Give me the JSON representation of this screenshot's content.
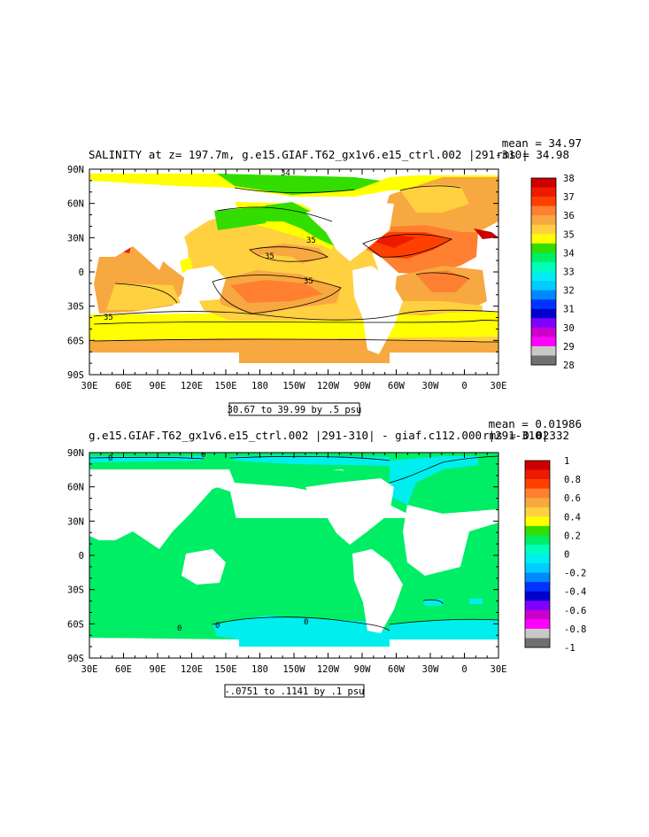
{
  "chart_data": [
    {
      "type": "heatmap",
      "title": "SALINITY at z= 197.7m, g.e15.GIAF.T62_gx1v6.e15_ctrl.002 |291-310|",
      "stats": {
        "mean": "mean = 34.97",
        "rms": "rms = 34.98"
      },
      "xticks": [
        "30E",
        "60E",
        "90E",
        "120E",
        "150E",
        "180",
        "150W",
        "120W",
        "90W",
        "60W",
        "30W",
        "0",
        "30E"
      ],
      "yticks": [
        "90N",
        "60N",
        "30N",
        "0",
        "30S",
        "60S",
        "90S"
      ],
      "xlim": [
        30,
        390
      ],
      "ylim": [
        -90,
        90
      ],
      "range_label": "30.67 to 39.99 by .5 psu",
      "legend": {
        "labels": [
          "38",
          "37",
          "36",
          "35",
          "34",
          "33",
          "32",
          "31",
          "30",
          "29",
          "28"
        ],
        "colors": [
          "#cc0000",
          "#ee1a00",
          "#ff4000",
          "#ff8030",
          "#f7a840",
          "#ffd040",
          "#ffff00",
          "#33dd00",
          "#00ee66",
          "#00ffbb",
          "#00eeee",
          "#00ccff",
          "#0088ff",
          "#0033ff",
          "#0000cc",
          "#8000ff",
          "#cc00cc",
          "#ff00ff",
          "#c8c8c8",
          "#707070"
        ]
      },
      "contour_labels": [
        "35",
        "35",
        "35",
        "35",
        "34"
      ]
    },
    {
      "type": "heatmap",
      "title": "g.e15.GIAF.T62_gx1v6.e15_ctrl.002 |291-310| - giaf.c112.000 |291-310|",
      "stats": {
        "mean": "mean = 0.01986",
        "rms": "rms = 0.02332"
      },
      "xticks": [
        "30E",
        "60E",
        "90E",
        "120E",
        "150E",
        "180",
        "150W",
        "120W",
        "90W",
        "60W",
        "30W",
        "0",
        "30E"
      ],
      "yticks": [
        "90N",
        "60N",
        "30N",
        "0",
        "30S",
        "60S",
        "90S"
      ],
      "xlim": [
        30,
        390
      ],
      "ylim": [
        -90,
        90
      ],
      "range_label": "-.0751 to .1141 by .1 psu",
      "legend": {
        "labels": [
          "1",
          "0.8",
          "0.6",
          "0.4",
          "0.2",
          "0",
          "-0.2",
          "-0.4",
          "-0.6",
          "-0.8",
          "-1"
        ],
        "colors": [
          "#cc0000",
          "#ee1a00",
          "#ff4000",
          "#ff8030",
          "#f7a840",
          "#ffd040",
          "#ffff00",
          "#33dd00",
          "#00ee66",
          "#00ffbb",
          "#00eeee",
          "#00ccff",
          "#0088ff",
          "#0033ff",
          "#0000cc",
          "#8000ff",
          "#cc00cc",
          "#ff00ff",
          "#c8c8c8",
          "#707070"
        ]
      },
      "contour_labels": [
        "0",
        "0",
        "0",
        "0",
        "0"
      ]
    }
  ]
}
